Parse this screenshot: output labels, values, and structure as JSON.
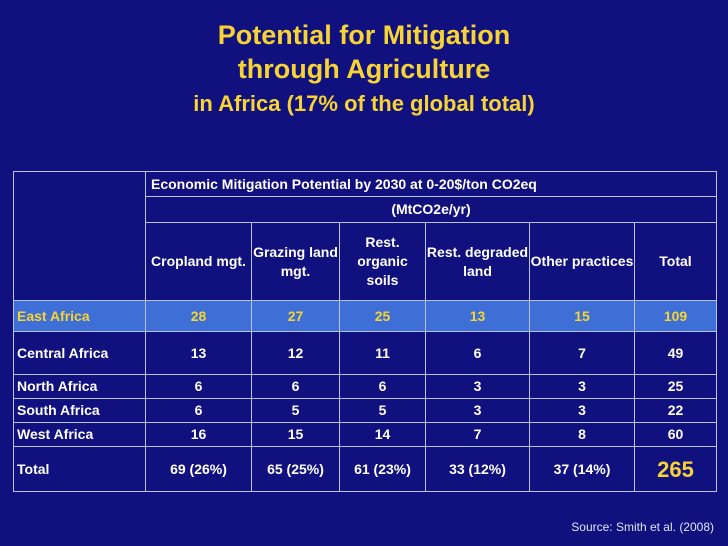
{
  "title": {
    "line1": "Potential for Mitigation",
    "line2": "through Agriculture",
    "line3": "in Africa (17% of the global total)"
  },
  "table": {
    "header": {
      "emp_title": "Economic Mitigation Potential by 2030 at 0-20$/ton CO2eq",
      "unit": "(MtCO2e/yr)",
      "columns": [
        "Cropland mgt.",
        "Grazing land mgt.",
        "Rest. organic soils",
        "Rest. degraded land",
        "Other practices",
        "Total"
      ]
    },
    "rows": [
      {
        "region": "East Africa",
        "values": [
          "28",
          "27",
          "25",
          "13",
          "15",
          "109"
        ]
      },
      {
        "region": "Central Africa",
        "values": [
          "13",
          "12",
          "11",
          "6",
          "7",
          "49"
        ]
      },
      {
        "region": "North Africa",
        "values": [
          "6",
          "6",
          "6",
          "3",
          "3",
          "25"
        ]
      },
      {
        "region": "South Africa",
        "values": [
          "6",
          "5",
          "5",
          "3",
          "3",
          "22"
        ]
      },
      {
        "region": "West Africa",
        "values": [
          "16",
          "15",
          "14",
          "7",
          "8",
          "60"
        ]
      },
      {
        "region": "Total",
        "values": [
          "69 (26%)",
          "65 (25%)",
          "61 (23%)",
          "33 (12%)",
          "37 (14%)",
          "265"
        ]
      }
    ]
  },
  "source": "Source: Smith et al. (2008)",
  "colors": {
    "background": "#10107e",
    "title": "#f7d433",
    "highlight_row": "#3d6fd6",
    "highlight_text": "#f7d433"
  }
}
